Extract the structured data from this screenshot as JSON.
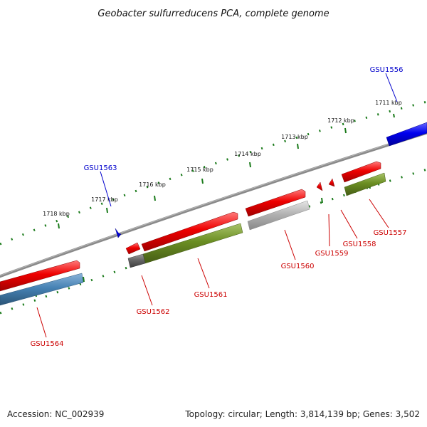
{
  "title": "Geobacter sulfurreducens PCA, complete genome",
  "footer": {
    "accession": "Accession: NC_002939",
    "summary": "Topology: circular; Length: 3,814,139 bp; Genes: 3,502"
  },
  "scale": {
    "unit": "kbp",
    "labels": [
      "1711 kbp",
      "1712 kbp",
      "1713 kbp",
      "1714 kbp",
      "1715 kbp",
      "1716 kbp",
      "1717 kbp",
      "1718 kbp"
    ]
  },
  "genes": [
    {
      "name": "GSU1556",
      "label_color": "#0000cc",
      "feature_color": "#0000ee"
    },
    {
      "name": "GSU1557",
      "label_color": "#cc0000",
      "feature_color": "#ee0000"
    },
    {
      "name": "GSU1558",
      "label_color": "#cc0000",
      "feature_color": "#ee0000"
    },
    {
      "name": "GSU1559",
      "label_color": "#cc0000",
      "feature_color": "#ee0000"
    },
    {
      "name": "GSU1560",
      "label_color": "#cc0000",
      "feature_color": "#ee0000"
    },
    {
      "name": "GSU1561",
      "label_color": "#cc0000",
      "feature_color": "#ee0000"
    },
    {
      "name": "GSU1562",
      "label_color": "#cc0000",
      "feature_color": "#ee0000"
    },
    {
      "name": "GSU1563",
      "label_color": "#0000cc",
      "feature_color": "#0000ee"
    },
    {
      "name": "GSU1564",
      "label_color": "#cc0000",
      "feature_color": "#ee0000"
    }
  ],
  "colors": {
    "backbone": "#7a7a7a",
    "scale_ticks": "#1a7a1a",
    "cog_green": "#6b8e23",
    "cog_steelblue": "#4682b4",
    "cog_grey": "#b3b3b3",
    "cog_darkgrey": "#666666"
  }
}
